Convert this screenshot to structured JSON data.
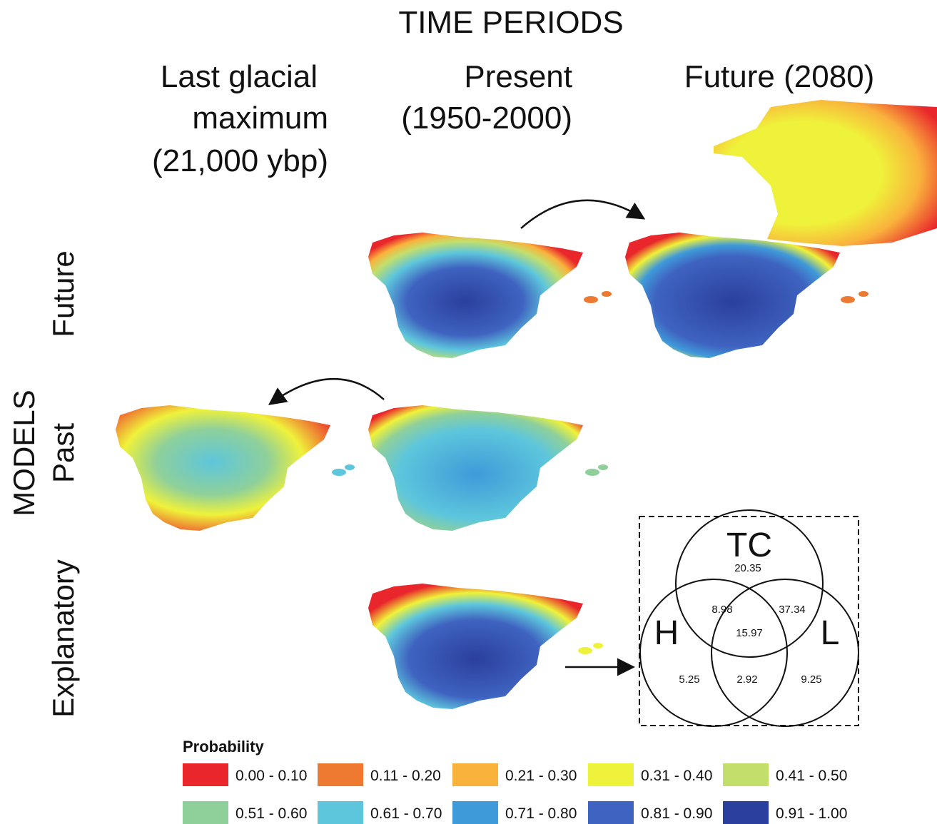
{
  "title": "TIME PERIODS",
  "columns": [
    [
      "Last glacial",
      "maximum",
      "(21,000 ybp)"
    ],
    [
      "Present",
      "(1950-2000)"
    ],
    [
      "Future (2080)"
    ]
  ],
  "group_label": "MODELS",
  "rows": [
    "Future",
    "Past",
    "Explanatory"
  ],
  "venn": {
    "sets": [
      "TC",
      "H",
      "L"
    ],
    "regions": {
      "tc_only": "20.35",
      "tc_h": "8.98",
      "tc_l": "37.34",
      "all": "15.97",
      "h_only": "5.25",
      "h_l": "2.92",
      "l_only": "9.25"
    }
  },
  "legend": {
    "title": "Probability",
    "items": [
      {
        "label": "0.00 - 0.10",
        "color": "#e8262b"
      },
      {
        "label": "0.11 - 0.20",
        "color": "#ee7a32"
      },
      {
        "label": "0.21 - 0.30",
        "color": "#f9b23c"
      },
      {
        "label": "0.31 - 0.40",
        "color": "#eff23a"
      },
      {
        "label": "0.41 - 0.50",
        "color": "#c3df6b"
      },
      {
        "label": "0.51 - 0.60",
        "color": "#8fd09a"
      },
      {
        "label": "0.61 - 0.70",
        "color": "#5dc6dc"
      },
      {
        "label": "0.71 - 0.80",
        "color": "#3f9ad9"
      },
      {
        "label": "0.81 - 0.90",
        "color": "#3f63c0"
      },
      {
        "label": "0.91 - 1.00",
        "color": "#2b3f9e"
      }
    ]
  }
}
